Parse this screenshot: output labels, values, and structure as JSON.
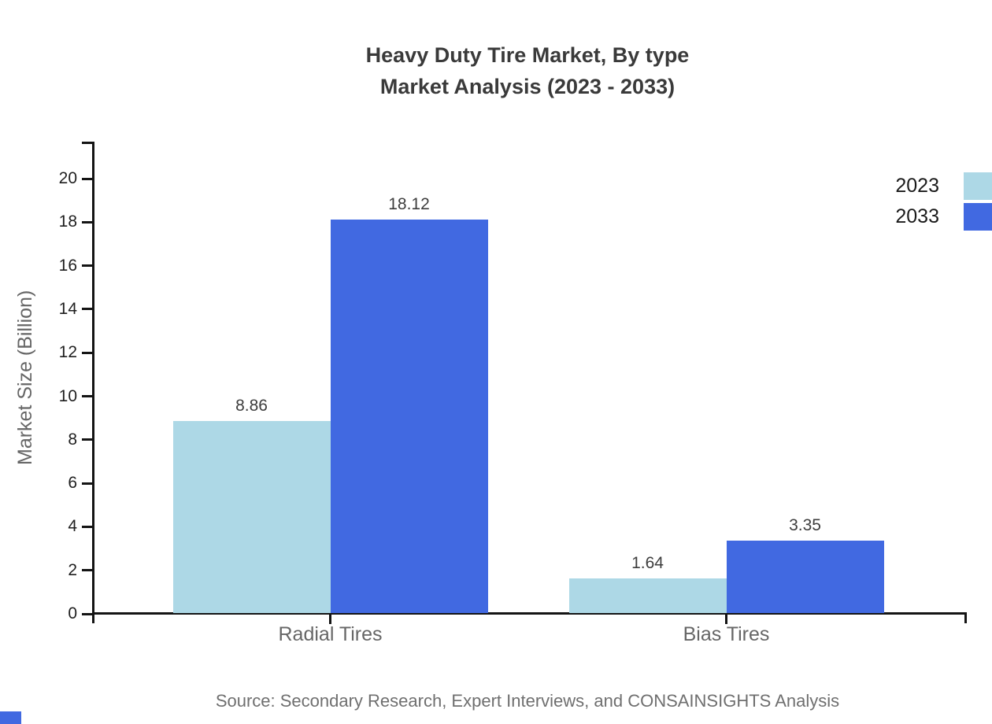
{
  "title": {
    "line1": "Heavy Duty Tire Market, By type",
    "line2": "Market Analysis (2023 - 2033)"
  },
  "chart_data": {
    "type": "bar",
    "categories": [
      "Radial Tires",
      "Bias Tires"
    ],
    "series": [
      {
        "name": "2023",
        "color": "#ADD8E6",
        "values": [
          8.86,
          1.64
        ]
      },
      {
        "name": "2033",
        "color": "#4169E1",
        "values": [
          18.12,
          3.35
        ]
      }
    ],
    "ylabel": "Market Size (Billion)",
    "xlabel": "",
    "ylim": [
      0,
      20
    ],
    "yticks": [
      0,
      2,
      4,
      6,
      8,
      10,
      12,
      14,
      16,
      18,
      20
    ],
    "grid": false,
    "legend_position": "top-right",
    "value_label_decimals": 2
  },
  "source": "Source: Secondary Research, Expert Interviews, and CONSAINSIGHTS Analysis",
  "colors": {
    "background": "#ffffff",
    "axis": "#141414",
    "tick_label": "#1f1f1f",
    "value_label": "#3d3d3d",
    "category_label": "#666666",
    "y_axis_title": "#666666",
    "title": "#3a3a3a",
    "legend_label": "#1a1a1a",
    "source": "#6f6f6f",
    "corner_mark": "#4169E1"
  }
}
